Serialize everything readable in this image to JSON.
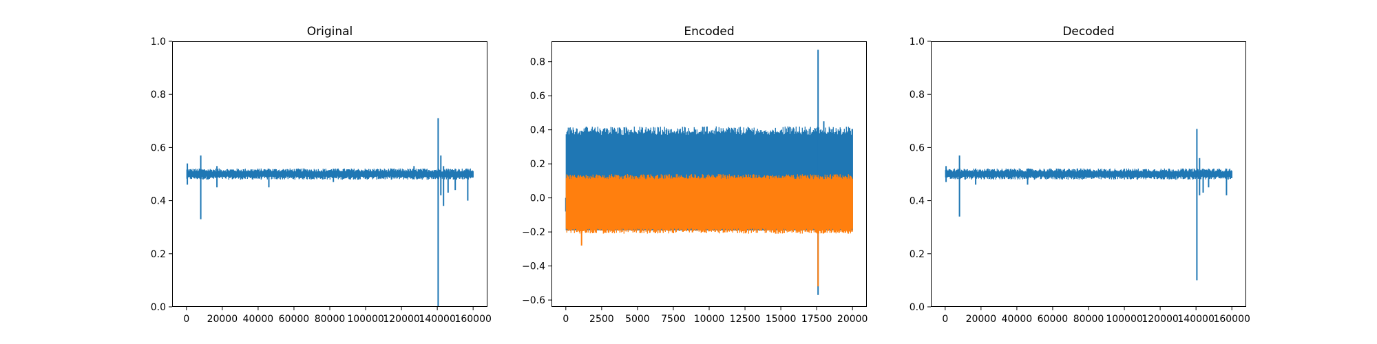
{
  "chart_data": [
    {
      "type": "line",
      "title": "Original",
      "xlim": [
        -8000,
        168000
      ],
      "ylim": [
        0.0,
        1.0
      ],
      "xticks": [
        0,
        20000,
        40000,
        60000,
        80000,
        100000,
        120000,
        140000,
        160000
      ],
      "xtick_labels": [
        "0",
        "20000",
        "40000",
        "60000",
        "80000",
        "100000",
        "120000",
        "140000",
        "160000"
      ],
      "yticks": [
        0.0,
        0.2,
        0.4,
        0.6,
        0.8,
        1.0
      ],
      "ytick_labels": [
        "0.0",
        "0.2",
        "0.4",
        "0.6",
        "0.8",
        "1.0"
      ],
      "grid": false,
      "series": [
        {
          "color": "#1f77b4",
          "x_range": [
            0,
            160000
          ],
          "baseline": 0.5,
          "band": [
            0.485,
            0.515
          ],
          "spikes": [
            {
              "x": 500,
              "high": 0.54,
              "low": 0.46
            },
            {
              "x": 8000,
              "high": 0.57,
              "low": 0.33
            },
            {
              "x": 17000,
              "high": 0.53,
              "low": 0.45
            },
            {
              "x": 46000,
              "high": 0.52,
              "low": 0.45
            },
            {
              "x": 82000,
              "high": 0.52,
              "low": 0.47
            },
            {
              "x": 127000,
              "high": 0.53,
              "low": 0.48
            },
            {
              "x": 140500,
              "high": 0.71,
              "low": 0.0
            },
            {
              "x": 142000,
              "high": 0.57,
              "low": 0.42
            },
            {
              "x": 143500,
              "high": 0.53,
              "low": 0.38
            },
            {
              "x": 146000,
              "high": 0.52,
              "low": 0.43
            },
            {
              "x": 150000,
              "high": 0.52,
              "low": 0.44
            },
            {
              "x": 157000,
              "high": 0.52,
              "low": 0.4
            }
          ]
        }
      ]
    },
    {
      "type": "line",
      "title": "Encoded",
      "xlim": [
        -1000,
        21000
      ],
      "ylim": [
        -0.64,
        0.92
      ],
      "xticks": [
        0,
        2500,
        5000,
        7500,
        10000,
        12500,
        15000,
        17500,
        20000
      ],
      "xtick_labels": [
        "0",
        "2500",
        "5000",
        "7500",
        "10000",
        "12500",
        "15000",
        "17500",
        "20000"
      ],
      "yticks": [
        -0.6,
        -0.4,
        -0.2,
        0.0,
        0.2,
        0.4,
        0.6,
        0.8
      ],
      "ytick_labels": [
        "−0.6",
        "−0.4",
        "−0.2",
        "0.0",
        "0.2",
        "0.4",
        "0.6",
        "0.8"
      ],
      "grid": false,
      "series": [
        {
          "color": "#1f77b4",
          "x_range": [
            0,
            20000
          ],
          "band": [
            -0.19,
            0.37
          ],
          "top_envelope": [
            0.37,
            0.42
          ],
          "spikes": [
            {
              "x": 0,
              "high": 0.0,
              "low": -0.08
            },
            {
              "x": 17600,
              "high": 0.87,
              "low": -0.57
            },
            {
              "x": 18000,
              "high": 0.45,
              "low": -0.1
            }
          ]
        },
        {
          "color": "#ff7f0e",
          "x_range": [
            0,
            20000
          ],
          "band": [
            -0.19,
            0.13
          ],
          "top_envelope": [
            0.11,
            0.14
          ],
          "bottom_envelope": [
            -0.21,
            -0.18
          ],
          "spikes": [
            {
              "x": 1100,
              "high": 0.1,
              "low": -0.28
            },
            {
              "x": 17600,
              "high": 0.1,
              "low": -0.52
            }
          ]
        }
      ]
    },
    {
      "type": "line",
      "title": "Decoded",
      "xlim": [
        -8000,
        168000
      ],
      "ylim": [
        0.0,
        1.0
      ],
      "xticks": [
        0,
        20000,
        40000,
        60000,
        80000,
        100000,
        120000,
        140000,
        160000
      ],
      "xtick_labels": [
        "0",
        "20000",
        "40000",
        "60000",
        "80000",
        "100000",
        "120000",
        "140000",
        "160000"
      ],
      "yticks": [
        0.0,
        0.2,
        0.4,
        0.6,
        0.8,
        1.0
      ],
      "ytick_labels": [
        "0.0",
        "0.2",
        "0.4",
        "0.6",
        "0.8",
        "1.0"
      ],
      "grid": false,
      "series": [
        {
          "color": "#1f77b4",
          "x_range": [
            0,
            160000
          ],
          "baseline": 0.5,
          "band": [
            0.485,
            0.515
          ],
          "spikes": [
            {
              "x": 500,
              "high": 0.53,
              "low": 0.47
            },
            {
              "x": 8000,
              "high": 0.57,
              "low": 0.34
            },
            {
              "x": 17000,
              "high": 0.52,
              "low": 0.46
            },
            {
              "x": 46000,
              "high": 0.52,
              "low": 0.46
            },
            {
              "x": 125000,
              "high": 0.52,
              "low": 0.48
            },
            {
              "x": 140500,
              "high": 0.67,
              "low": 0.1
            },
            {
              "x": 142000,
              "high": 0.56,
              "low": 0.42
            },
            {
              "x": 144000,
              "high": 0.52,
              "low": 0.43
            },
            {
              "x": 147000,
              "high": 0.52,
              "low": 0.45
            },
            {
              "x": 157000,
              "high": 0.52,
              "low": 0.42
            }
          ]
        }
      ]
    }
  ]
}
